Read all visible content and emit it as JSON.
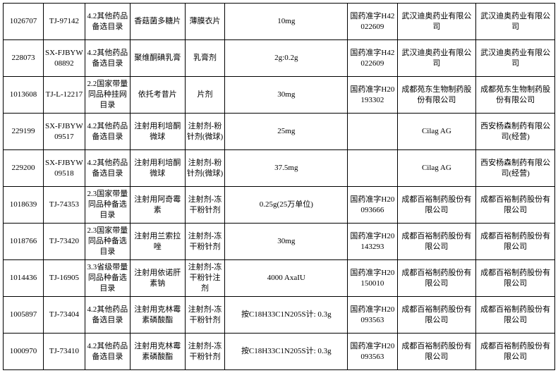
{
  "table": {
    "rows": [
      {
        "c1": "1026707",
        "c2": "TJ-97142",
        "c3": "4.2其他药品备选目录",
        "c4": "香菇菌多糖片",
        "c5": "薄膜衣片",
        "c6": "10mg",
        "c7": "国药准字H42022609",
        "c8": "武汉迪奥药业有限公司",
        "c9": "武汉迪奥药业有限公司"
      },
      {
        "c1": "228073",
        "c2": "SX-FJBYW08892",
        "c3": "4.2其他药品备选目录",
        "c4": "聚维酮碘乳膏",
        "c5": "乳膏剂",
        "c6": "2g:0.2g",
        "c7": "国药准字H42022609",
        "c8": "武汉迪奥药业有限公司",
        "c9": "武汉迪奥药业有限公司"
      },
      {
        "c1": "1013608",
        "c2": "TJ-L-12217",
        "c3": "2.2国家带量同品种挂网目录",
        "c4": "依托考昔片",
        "c5": "片剂",
        "c6": "30mg",
        "c7": "国药准字H20193302",
        "c8": "成都苑东生物制药股份有限公司",
        "c9": "成都苑东生物制药股份有限公司"
      },
      {
        "c1": "229199",
        "c2": "SX-FJBYW09517",
        "c3": "4.2其他药品备选目录",
        "c4": "注射用利培酮微球",
        "c5": "注射剂-粉针剂(微球)",
        "c6": "25mg",
        "c7": "",
        "c8": "Cilag AG",
        "c9": "西安杨森制药有限公司(经营)"
      },
      {
        "c1": "229200",
        "c2": "SX-FJBYW09518",
        "c3": "4.2其他药品备选目录",
        "c4": "注射用利培酮微球",
        "c5": "注射剂-粉针剂(微球)",
        "c6": "37.5mg",
        "c7": "",
        "c8": "Cilag AG",
        "c9": "西安杨森制药有限公司(经营)"
      },
      {
        "c1": "1018639",
        "c2": "TJ-74353",
        "c3": "2.3国家带量同品种备选目录",
        "c4": "注射用阿奇霉素",
        "c5": "注射剂-冻干粉针剂",
        "c6": "0.25g(25万单位)",
        "c7": "国药准字H20093666",
        "c8": "成都百裕制药股份有限公司",
        "c9": "成都百裕制药股份有限公司"
      },
      {
        "c1": "1018766",
        "c2": "TJ-73420",
        "c3": "2.3国家带量同品种备选目录",
        "c4": "注射用兰索拉唑",
        "c5": "注射剂-冻干粉针剂",
        "c6": "30mg",
        "c7": "国药准字H20143293",
        "c8": "成都百裕制药股份有限公司",
        "c9": "成都百裕制药股份有限公司"
      },
      {
        "c1": "1014436",
        "c2": "TJ-16905",
        "c3": "3.3省级带量同品种备选目录",
        "c4": "注射用依诺肝素钠",
        "c5": "注射剂-冻干粉针注剂",
        "c6": "4000 AxaIU",
        "c7": "国药准字H20150010",
        "c8": "成都百裕制药股份有限公司",
        "c9": "成都百裕制药股份有限公司"
      },
      {
        "c1": "1005897",
        "c2": "TJ-73404",
        "c3": "4.2其他药品备选目录",
        "c4": "注射用克林霉素磷酸酯",
        "c5": "注射剂-冻干粉针剂",
        "c6": "按C18H33C1N205S计: 0.3g",
        "c7": "国药准字H20093563",
        "c8": "成都百裕制药股份有限公司",
        "c9": "成都百裕制药股份有限公司"
      },
      {
        "c1": "1000970",
        "c2": "TJ-73410",
        "c3": "4.2其他药品备选目录",
        "c4": "注射用克林霉素磷酸酯",
        "c5": "注射剂-冻干粉针剂",
        "c6": "按C18H33C1N205S计: 0.3g",
        "c7": "国药准字H20093563",
        "c8": "成都百裕制药股份有限公司",
        "c9": "成都百裕制药股份有限公司"
      }
    ]
  }
}
